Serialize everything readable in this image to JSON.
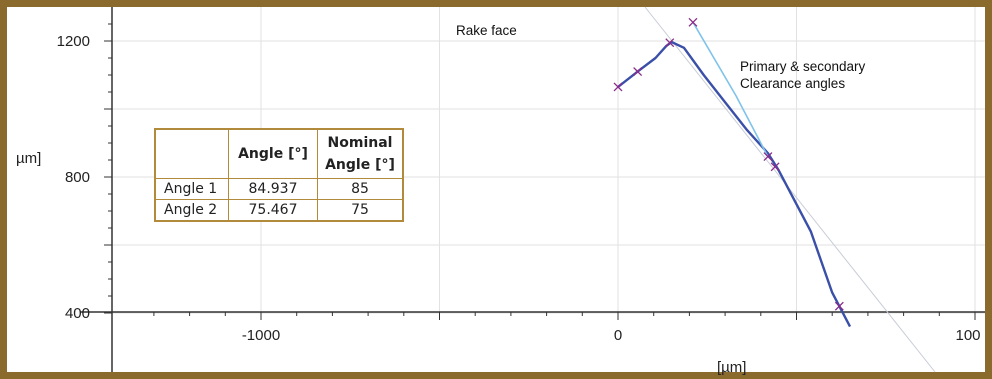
{
  "chart_data": {
    "type": "line",
    "xlabel": "[µm]",
    "ylabel": "µm]",
    "xlim": [
      -1350,
      1000
    ],
    "ylim": [
      330,
      1260
    ],
    "x_ticks": [
      -1000,
      0,
      100
    ],
    "x_tick_labels": [
      "-1000",
      "0",
      "100"
    ],
    "y_ticks": [
      1200,
      800,
      400
    ],
    "y_tick_labels": [
      "1200",
      "800",
      "400"
    ],
    "grid": true,
    "series": [
      {
        "style": "dark-blue-profile",
        "x": [
          0,
          55,
          105,
          135,
          150,
          185,
          240,
          300,
          360,
          420,
          450,
          540,
          600,
          650
        ],
        "y": [
          1065,
          1110,
          1150,
          1185,
          1197,
          1180,
          1100,
          1020,
          940,
          870,
          820,
          640,
          460,
          360
        ]
      },
      {
        "style": "light-blue-clearance",
        "x": [
          210,
          330,
          420
        ],
        "y": [
          1255,
          1040,
          860
        ]
      }
    ],
    "markers": [
      {
        "x": 0,
        "y": 1065
      },
      {
        "x": 55,
        "y": 1110
      },
      {
        "x": 145,
        "y": 1195
      },
      {
        "x": 210,
        "y": 1255
      },
      {
        "x": 420,
        "y": 860
      },
      {
        "x": 440,
        "y": 830
      },
      {
        "x": 620,
        "y": 420
      }
    ],
    "annotations": [
      {
        "text": "Rake face"
      },
      {
        "text": "Primary & secondary"
      },
      {
        "text": "Clearance angles"
      }
    ]
  },
  "table": {
    "headers": [
      "",
      "Angle [°]",
      "Nominal Angle [°]"
    ],
    "header_nominal_line1": "Nominal",
    "header_nominal_line2": "Angle [°]",
    "rows": [
      {
        "label": "Angle 1",
        "angle": "84.937",
        "nominal": "85"
      },
      {
        "label": "Angle 2",
        "angle": "75.467",
        "nominal": "75"
      }
    ]
  },
  "colors": {
    "profile": "#3a4fa8",
    "clearance": "#7fc3ea",
    "marker": "#8a2a8a",
    "grid": "#e2e2e2",
    "border": "#8b6a2e"
  }
}
